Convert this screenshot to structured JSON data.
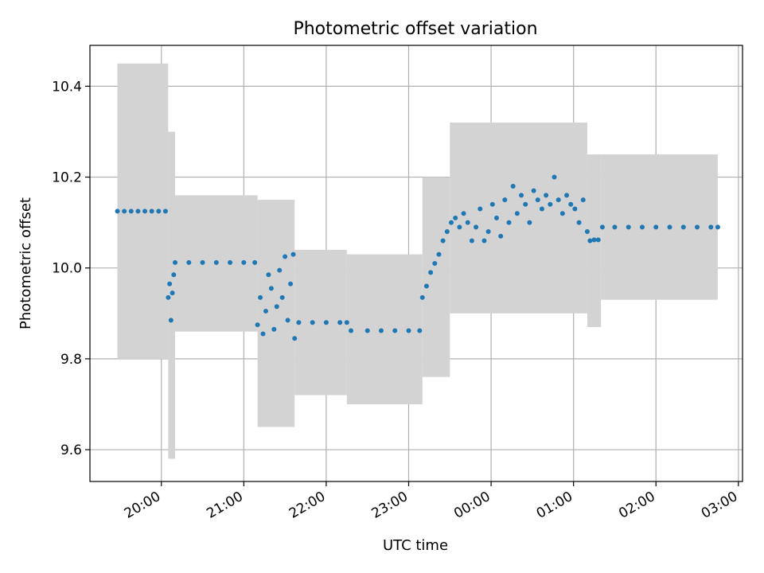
{
  "chart_data": {
    "type": "scatter",
    "title": "Photometric offset variation",
    "xlabel": "UTC time",
    "ylabel": "Photometric offset",
    "xlim": [
      "19:08",
      "03:03"
    ],
    "ylim": [
      9.53,
      10.49
    ],
    "x_ticks": [
      "20:00",
      "21:00",
      "22:00",
      "23:00",
      "00:00",
      "01:00",
      "02:00",
      "03:00"
    ],
    "y_ticks": [
      "9.6",
      "9.8",
      "10.0",
      "10.2",
      "10.4"
    ],
    "grid": true,
    "colors": {
      "points": "#1f77b4",
      "error_band": "#d3d3d3",
      "grid": "#b0b0b0"
    },
    "error_band_segments": [
      {
        "start": "19:28",
        "end": "20:05",
        "lower": 9.8,
        "upper": 10.45
      },
      {
        "start": "20:05",
        "end": "20:10",
        "lower": 9.58,
        "upper": 10.3
      },
      {
        "start": "20:10",
        "end": "21:10",
        "lower": 9.86,
        "upper": 10.16
      },
      {
        "start": "21:10",
        "end": "21:37",
        "lower": 9.65,
        "upper": 10.15
      },
      {
        "start": "21:37",
        "end": "22:15",
        "lower": 9.72,
        "upper": 10.04
      },
      {
        "start": "22:15",
        "end": "23:10",
        "lower": 9.7,
        "upper": 10.03
      },
      {
        "start": "23:10",
        "end": "23:30",
        "lower": 9.76,
        "upper": 10.2
      },
      {
        "start": "23:30",
        "end": "01:10",
        "lower": 9.9,
        "upper": 10.32
      },
      {
        "start": "01:10",
        "end": "01:20",
        "lower": 9.87,
        "upper": 10.25
      },
      {
        "start": "01:20",
        "end": "02:45",
        "lower": 9.93,
        "upper": 10.25
      }
    ],
    "series": [
      {
        "values": [
          {
            "x": "19:28",
            "y": 10.125
          },
          {
            "x": "19:33",
            "y": 10.125
          },
          {
            "x": "19:38",
            "y": 10.125
          },
          {
            "x": "19:43",
            "y": 10.125
          },
          {
            "x": "19:48",
            "y": 10.125
          },
          {
            "x": "19:53",
            "y": 10.125
          },
          {
            "x": "19:58",
            "y": 10.125
          },
          {
            "x": "20:03",
            "y": 10.125
          },
          {
            "x": "20:05",
            "y": 9.935
          },
          {
            "x": "20:06",
            "y": 9.965
          },
          {
            "x": "20:07",
            "y": 9.885
          },
          {
            "x": "20:08",
            "y": 9.945
          },
          {
            "x": "20:09",
            "y": 9.985
          },
          {
            "x": "20:10",
            "y": 10.012
          },
          {
            "x": "20:20",
            "y": 10.012
          },
          {
            "x": "20:30",
            "y": 10.012
          },
          {
            "x": "20:40",
            "y": 10.012
          },
          {
            "x": "20:50",
            "y": 10.012
          },
          {
            "x": "21:00",
            "y": 10.012
          },
          {
            "x": "21:08",
            "y": 10.012
          },
          {
            "x": "21:10",
            "y": 9.875
          },
          {
            "x": "21:12",
            "y": 9.935
          },
          {
            "x": "21:14",
            "y": 9.855
          },
          {
            "x": "21:16",
            "y": 9.905
          },
          {
            "x": "21:18",
            "y": 9.985
          },
          {
            "x": "21:20",
            "y": 9.955
          },
          {
            "x": "21:22",
            "y": 9.865
          },
          {
            "x": "21:24",
            "y": 9.915
          },
          {
            "x": "21:26",
            "y": 9.995
          },
          {
            "x": "21:28",
            "y": 9.935
          },
          {
            "x": "21:30",
            "y": 10.025
          },
          {
            "x": "21:32",
            "y": 9.885
          },
          {
            "x": "21:34",
            "y": 9.965
          },
          {
            "x": "21:36",
            "y": 10.03
          },
          {
            "x": "21:37",
            "y": 9.845
          },
          {
            "x": "21:40",
            "y": 9.88
          },
          {
            "x": "21:50",
            "y": 9.88
          },
          {
            "x": "22:00",
            "y": 9.88
          },
          {
            "x": "22:10",
            "y": 9.88
          },
          {
            "x": "22:15",
            "y": 9.88
          },
          {
            "x": "22:18",
            "y": 9.862
          },
          {
            "x": "22:30",
            "y": 9.862
          },
          {
            "x": "22:40",
            "y": 9.862
          },
          {
            "x": "22:50",
            "y": 9.862
          },
          {
            "x": "23:00",
            "y": 9.862
          },
          {
            "x": "23:08",
            "y": 9.862
          },
          {
            "x": "23:10",
            "y": 9.935
          },
          {
            "x": "23:13",
            "y": 9.96
          },
          {
            "x": "23:16",
            "y": 9.99
          },
          {
            "x": "23:19",
            "y": 10.01
          },
          {
            "x": "23:22",
            "y": 10.03
          },
          {
            "x": "23:25",
            "y": 10.06
          },
          {
            "x": "23:28",
            "y": 10.08
          },
          {
            "x": "23:31",
            "y": 10.1
          },
          {
            "x": "23:34",
            "y": 10.11
          },
          {
            "x": "23:37",
            "y": 10.09
          },
          {
            "x": "23:40",
            "y": 10.12
          },
          {
            "x": "23:43",
            "y": 10.1
          },
          {
            "x": "23:46",
            "y": 10.06
          },
          {
            "x": "23:49",
            "y": 10.09
          },
          {
            "x": "23:52",
            "y": 10.13
          },
          {
            "x": "23:55",
            "y": 10.06
          },
          {
            "x": "23:58",
            "y": 10.08
          },
          {
            "x": "00:01",
            "y": 10.14
          },
          {
            "x": "00:04",
            "y": 10.11
          },
          {
            "x": "00:07",
            "y": 10.07
          },
          {
            "x": "00:10",
            "y": 10.15
          },
          {
            "x": "00:13",
            "y": 10.1
          },
          {
            "x": "00:16",
            "y": 10.18
          },
          {
            "x": "00:19",
            "y": 10.12
          },
          {
            "x": "00:22",
            "y": 10.16
          },
          {
            "x": "00:25",
            "y": 10.14
          },
          {
            "x": "00:28",
            "y": 10.1
          },
          {
            "x": "00:31",
            "y": 10.17
          },
          {
            "x": "00:34",
            "y": 10.15
          },
          {
            "x": "00:37",
            "y": 10.13
          },
          {
            "x": "00:40",
            "y": 10.16
          },
          {
            "x": "00:43",
            "y": 10.14
          },
          {
            "x": "00:46",
            "y": 10.2
          },
          {
            "x": "00:49",
            "y": 10.15
          },
          {
            "x": "00:52",
            "y": 10.12
          },
          {
            "x": "00:55",
            "y": 10.16
          },
          {
            "x": "00:58",
            "y": 10.14
          },
          {
            "x": "01:01",
            "y": 10.13
          },
          {
            "x": "01:04",
            "y": 10.1
          },
          {
            "x": "01:07",
            "y": 10.15
          },
          {
            "x": "01:10",
            "y": 10.08
          },
          {
            "x": "01:12",
            "y": 10.06
          },
          {
            "x": "01:15",
            "y": 10.062
          },
          {
            "x": "01:18",
            "y": 10.062
          },
          {
            "x": "01:21",
            "y": 10.09
          },
          {
            "x": "01:30",
            "y": 10.09
          },
          {
            "x": "01:40",
            "y": 10.09
          },
          {
            "x": "01:50",
            "y": 10.09
          },
          {
            "x": "02:00",
            "y": 10.09
          },
          {
            "x": "02:10",
            "y": 10.09
          },
          {
            "x": "02:20",
            "y": 10.09
          },
          {
            "x": "02:30",
            "y": 10.09
          },
          {
            "x": "02:40",
            "y": 10.09
          },
          {
            "x": "02:45",
            "y": 10.09
          }
        ]
      }
    ]
  }
}
